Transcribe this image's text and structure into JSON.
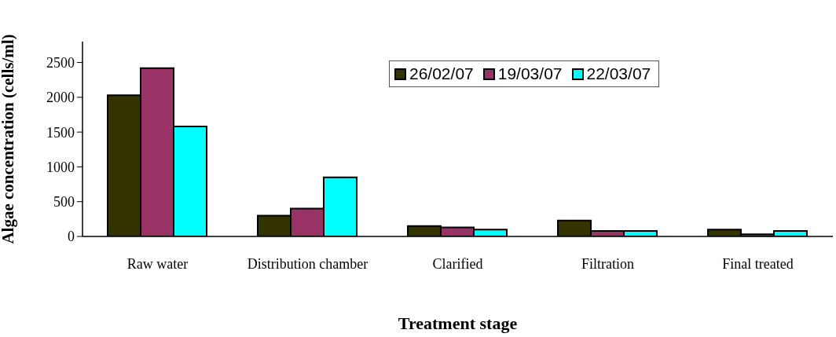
{
  "chart_data": {
    "type": "bar",
    "xlabel": "Treatment stage",
    "ylabel": "Algae concentration (cells/ml)",
    "categories": [
      "Raw water",
      "Distribution chamber",
      "Clarified",
      "Filtration",
      "Final treated"
    ],
    "series": [
      {
        "name": "26/02/07",
        "color": "#333300",
        "values": [
          2030,
          300,
          150,
          230,
          100
        ]
      },
      {
        "name": "19/03/07",
        "color": "#993366",
        "values": [
          2420,
          400,
          130,
          80,
          30
        ]
      },
      {
        "name": "22/03/07",
        "color": "#00ffff",
        "values": [
          1580,
          850,
          100,
          80,
          80
        ]
      }
    ],
    "ylim": [
      0,
      2800
    ],
    "yticks": [
      0,
      500,
      1000,
      1500,
      2000,
      2500
    ],
    "legend": "top right"
  }
}
